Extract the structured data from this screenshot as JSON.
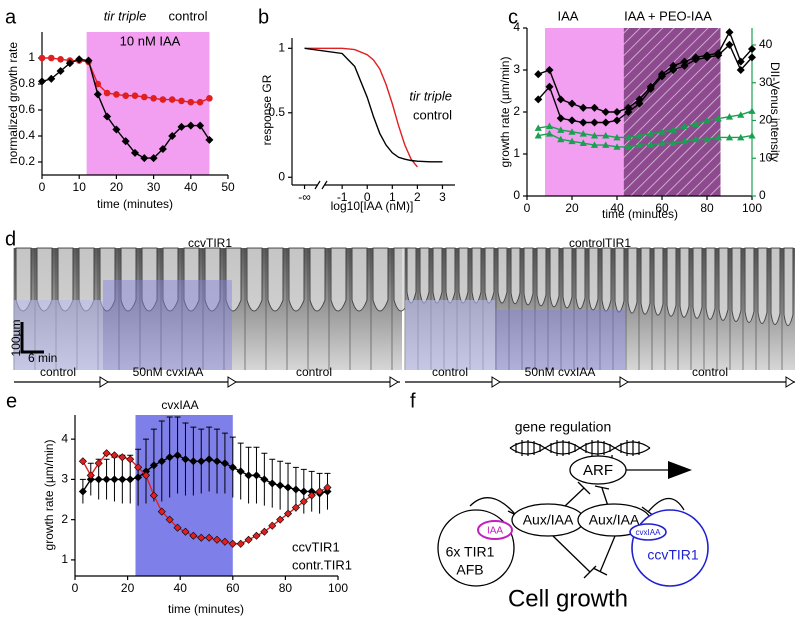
{
  "chart_data": [
    {
      "type": "line",
      "panel": "a",
      "xlabel": "time (minutes)",
      "ylabel": "normalized growth rate",
      "xlim": [
        0,
        50
      ],
      "ylim": [
        0.1,
        1.2
      ],
      "xticks": [
        0,
        10,
        20,
        30,
        40,
        50
      ],
      "yticks": [
        0.2,
        0.4,
        0.6,
        0.8,
        1
      ],
      "regions": [
        {
          "from": 12,
          "to": 45,
          "color": "#f29ef1",
          "label": "10 nM IAA"
        }
      ],
      "x": [
        0,
        2.5,
        5,
        7.5,
        10,
        12.5,
        15,
        17.5,
        20,
        22.5,
        25,
        27.5,
        30,
        32.5,
        35,
        37.5,
        40,
        42.5,
        45
      ],
      "series": [
        {
          "name": "tir triple",
          "italic": true,
          "color": "#e02020",
          "marker": "circle",
          "values": [
            1.0,
            1.0,
            0.99,
            0.98,
            0.98,
            0.97,
            0.8,
            0.73,
            0.72,
            0.71,
            0.71,
            0.7,
            0.69,
            0.68,
            0.68,
            0.67,
            0.66,
            0.66,
            0.69
          ]
        },
        {
          "name": "control",
          "color": "#000000",
          "marker": "diamond",
          "values": [
            0.82,
            0.84,
            0.9,
            0.96,
            0.99,
            0.98,
            0.72,
            0.55,
            0.45,
            0.36,
            0.27,
            0.23,
            0.23,
            0.3,
            0.4,
            0.47,
            0.48,
            0.48,
            0.37
          ]
        }
      ]
    },
    {
      "type": "line",
      "panel": "b",
      "xlabel": "log10[IAA (nM)]",
      "ylabel": "response GR",
      "xlim": [
        -3,
        3.5
      ],
      "ylim": [
        -0.06,
        1.08
      ],
      "axis_break": true,
      "xticks": [
        {
          "value": -2.5,
          "label": "-∞"
        },
        -1,
        0,
        1,
        2,
        3
      ],
      "yticks": [
        0,
        0.5,
        1
      ],
      "x": [
        -2.5,
        -1,
        -0.5,
        0,
        0.25,
        0.5,
        0.75,
        1,
        1.25,
        1.5,
        1.75,
        2,
        2.5,
        3
      ],
      "series": [
        {
          "name": "tir triple",
          "italic": true,
          "color": "#e02020",
          "values": [
            1,
            1,
            0.99,
            0.95,
            0.91,
            0.84,
            0.72,
            0.57,
            0.4,
            0.25,
            0.14,
            0.08,
            null,
            null
          ]
        },
        {
          "name": "control",
          "color": "#000000",
          "values": [
            1,
            0.96,
            0.86,
            0.62,
            0.47,
            0.34,
            0.25,
            0.19,
            0.155,
            0.14,
            0.13,
            0.125,
            0.12,
            0.12
          ]
        }
      ]
    },
    {
      "type": "line",
      "panel": "c",
      "xlabel": "time (minutes)",
      "ylabel": "growth rate (µm/min)",
      "y2label": "DII-Venus intensity",
      "y2color": "#1aa050",
      "xlim": [
        0,
        100
      ],
      "ylim": [
        0,
        4
      ],
      "y2lim": [
        0,
        44.5
      ],
      "xticks": [
        0,
        20,
        40,
        60,
        80,
        100
      ],
      "yticks": [
        0,
        1,
        2,
        3,
        4
      ],
      "y2ticks": [
        0,
        10,
        20,
        30,
        40
      ],
      "regions": [
        {
          "from": 8,
          "to": 43,
          "color": "#f29ef1",
          "label": "IAA"
        },
        {
          "from": 43,
          "to": 86,
          "color": "#8e4a8e",
          "hatch": true,
          "label": "IAA + PEO-IAA"
        }
      ],
      "x": [
        5,
        10,
        15,
        20,
        25,
        30,
        35,
        40,
        45,
        50,
        55,
        60,
        65,
        70,
        75,
        80,
        85,
        90,
        95,
        100
      ],
      "series": [
        {
          "color": "#000000",
          "marker": "diamond",
          "values": [
            2.9,
            3.0,
            2.3,
            2.2,
            2.1,
            2.1,
            2.0,
            2.0,
            2.1,
            2.3,
            2.6,
            2.9,
            3.1,
            3.2,
            3.3,
            3.35,
            3.4,
            3.9,
            3.2,
            3.5
          ]
        },
        {
          "color": "#000000",
          "marker": "diamond",
          "values": [
            2.3,
            2.6,
            1.85,
            1.8,
            1.75,
            1.75,
            1.75,
            1.8,
            2.0,
            2.2,
            2.55,
            2.85,
            3.0,
            3.1,
            3.25,
            3.3,
            3.35,
            3.6,
            3.0,
            3.3
          ]
        },
        {
          "color": "#1aa050",
          "marker": "triangle",
          "axis": "y2",
          "values": [
            18,
            18.5,
            17.5,
            17,
            16.5,
            16,
            16,
            15.5,
            15.5,
            16,
            16.5,
            17,
            17.5,
            18.5,
            19,
            20,
            20.5,
            21,
            21.5,
            22.5
          ]
        },
        {
          "color": "#1aa050",
          "marker": "triangle",
          "axis": "y2",
          "values": [
            16,
            16.5,
            15,
            14.5,
            14,
            13.5,
            13.5,
            13,
            13,
            13.5,
            13.5,
            14,
            14,
            14.5,
            15,
            15,
            15.5,
            15.5,
            15.5,
            16
          ]
        }
      ]
    },
    {
      "type": "line",
      "panel": "e",
      "title": "cvxIAA",
      "xlabel": "time (minutes)",
      "ylabel": "growth rate (µm/min)",
      "xlim": [
        0,
        100
      ],
      "ylim": [
        0.6,
        4.6
      ],
      "xticks": [
        0,
        20,
        40,
        60,
        80,
        100
      ],
      "yticks": [
        1,
        2,
        3,
        4
      ],
      "regions": [
        {
          "from": 23,
          "to": 60,
          "color": "#7f7fea"
        }
      ],
      "x": [
        3,
        6,
        9,
        12,
        15,
        18,
        21,
        24,
        27,
        30,
        33,
        36,
        39,
        42,
        45,
        48,
        51,
        54,
        57,
        60,
        63,
        66,
        69,
        72,
        75,
        78,
        81,
        84,
        87,
        90,
        93,
        96
      ],
      "series": [
        {
          "name": "contr.TIR1",
          "color": "#000000",
          "marker": "diamond",
          "values": [
            2.7,
            3.0,
            3.0,
            3.0,
            3.0,
            3.0,
            3.0,
            3.05,
            3.2,
            3.35,
            3.45,
            3.55,
            3.6,
            3.5,
            3.45,
            3.45,
            3.5,
            3.45,
            3.4,
            3.3,
            3.2,
            3.1,
            3.1,
            3.0,
            2.9,
            2.85,
            2.8,
            2.75,
            2.7,
            2.7,
            2.65,
            2.7
          ],
          "errors": [
            0.3,
            0.4,
            0.5,
            0.5,
            0.55,
            0.6,
            0.6,
            0.7,
            0.8,
            0.9,
            1.0,
            1.0,
            0.95,
            0.9,
            0.85,
            0.8,
            0.8,
            0.8,
            0.75,
            0.75,
            0.7,
            0.7,
            0.7,
            0.65,
            0.6,
            0.6,
            0.6,
            0.55,
            0.55,
            0.5,
            0.5,
            0.45
          ]
        },
        {
          "name": "ccvTIR1",
          "color": "#e02020",
          "marker": "diamond",
          "values": [
            3.45,
            3.1,
            3.4,
            3.65,
            3.6,
            3.55,
            3.5,
            3.3,
            3.1,
            2.6,
            2.2,
            2.0,
            1.8,
            1.7,
            1.6,
            1.55,
            1.55,
            1.5,
            1.45,
            1.4,
            1.4,
            1.5,
            1.6,
            1.7,
            1.85,
            2.0,
            2.15,
            2.3,
            2.45,
            2.6,
            2.7,
            2.8
          ]
        }
      ]
    }
  ],
  "panel_d": {
    "label": "d",
    "titles": [
      "ccvTIR1",
      "controlTIR1"
    ],
    "scale_bar": [
      "100µm",
      "6 min"
    ],
    "timeline": [
      [
        "control",
        "50nM cvxIAA",
        "control"
      ],
      [
        "control",
        "50nM cvxIAA",
        "control"
      ]
    ]
  },
  "panel_f": {
    "label": "f",
    "gene_regulation": "gene regulation",
    "arf": "ARF",
    "aux_iaa": [
      "Aux/IAA",
      "Aux/IAA"
    ],
    "iaa": "IAA",
    "cvxiaa": "cvxIAA",
    "tir1": [
      "6x TIR1",
      "AFB"
    ],
    "ccvtir1": "ccvTIR1",
    "cell_growth": "Cell growth"
  }
}
